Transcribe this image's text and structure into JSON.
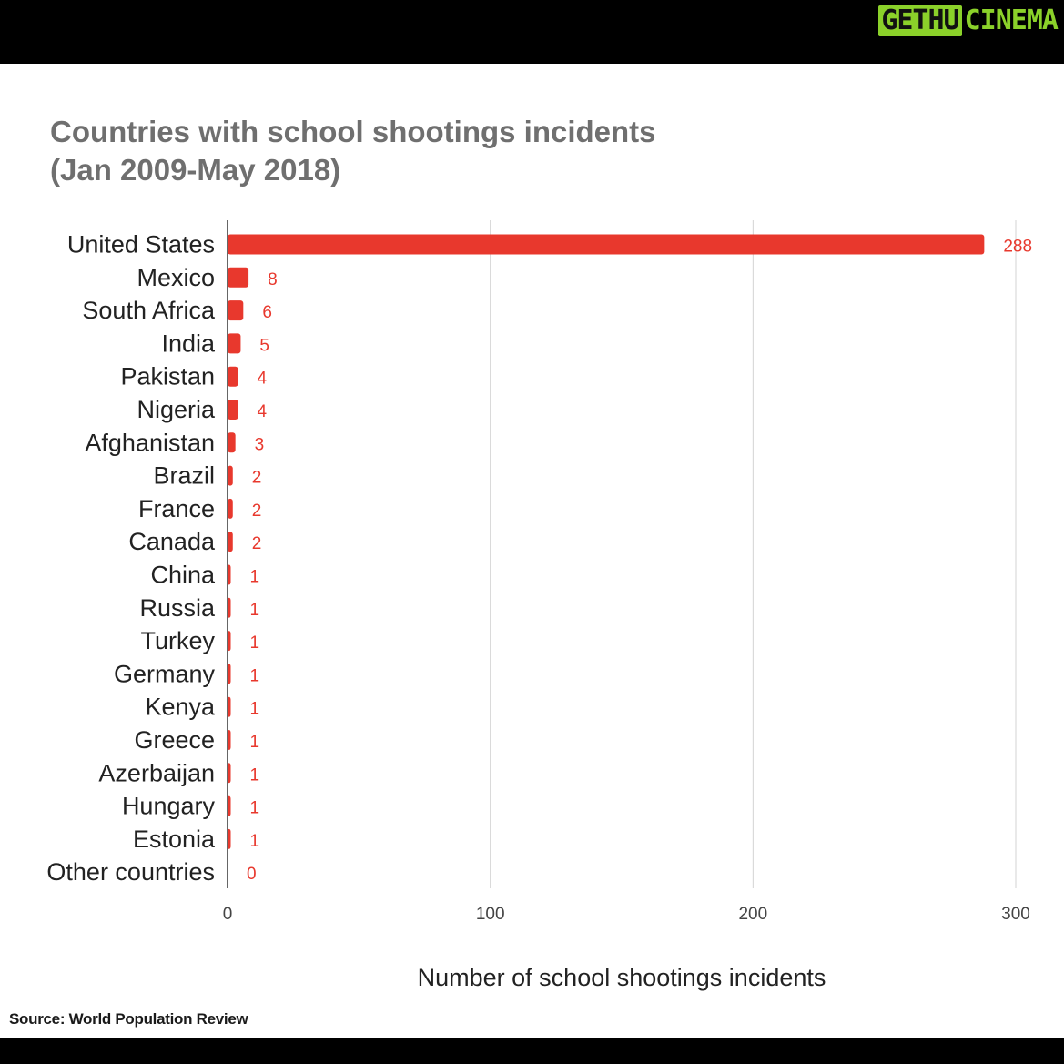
{
  "brand": {
    "part1": "GETHU",
    "part2": "CINEMA"
  },
  "chart_data": {
    "type": "bar",
    "orientation": "horizontal",
    "title_line1": "Countries with school shootings incidents",
    "title_line2": "(Jan 2009-May 2018)",
    "xlabel": "Number of school shootings incidents",
    "ylabel": "",
    "xlim": [
      0,
      300
    ],
    "xticks": [
      0,
      100,
      200,
      300
    ],
    "grid": true,
    "categories": [
      "United States",
      "Mexico",
      "South Africa",
      "India",
      "Pakistan",
      "Nigeria",
      "Afghanistan",
      "Brazil",
      "France",
      "Canada",
      "China",
      "Russia",
      "Turkey",
      "Germany",
      "Kenya",
      "Greece",
      "Azerbaijan",
      "Hungary",
      "Estonia",
      "Other countries"
    ],
    "values": [
      288,
      8,
      6,
      5,
      4,
      4,
      3,
      2,
      2,
      2,
      1,
      1,
      1,
      1,
      1,
      1,
      1,
      1,
      1,
      0
    ],
    "bar_color": "#e8382d",
    "label_color": "#e8382d",
    "grid_color": "#d3d3d3"
  },
  "source": "Source: World Population Review"
}
